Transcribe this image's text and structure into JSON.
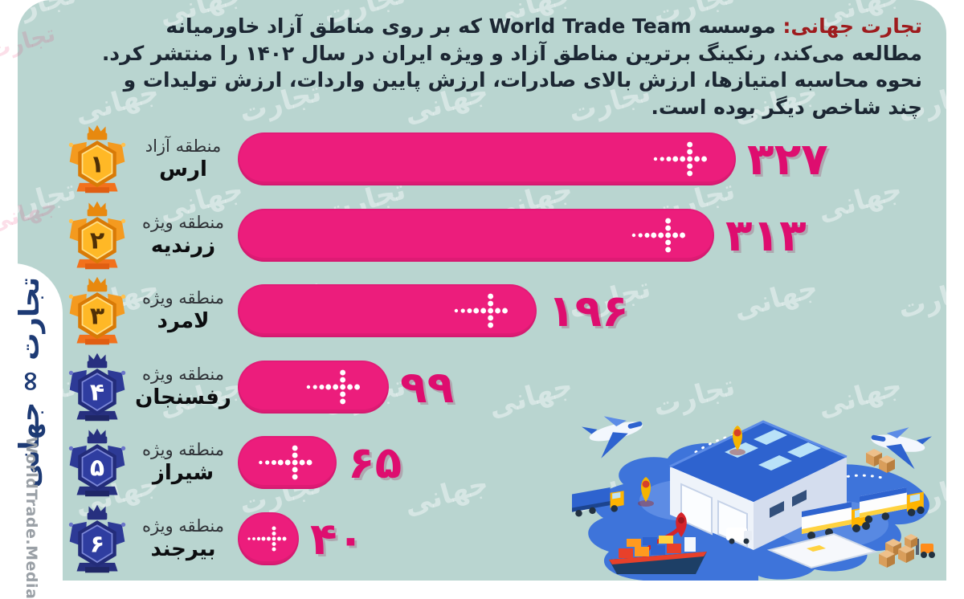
{
  "page": {
    "background": "#ffffff",
    "canvas_background": "#b9d5d0"
  },
  "header": {
    "lead": "تجارت جهانی:",
    "body": " موسسه World Trade Team که بر روی  مناطق آزاد خاورمیانه مطالعه می‌کند، رنکینگ برترین مناطق آزاد و ویژه ایران در سال ۱۴۰۲ را منتشر کرد. نحوه محاسبه امتیازها، ارزش بالای صادرات، ارزش پایین واردات، ارزش تولیدات و چند شاخص دیگر بوده است.",
    "lead_color": "#9e1c1e",
    "text_color": "#1c2733"
  },
  "brand": {
    "logo_fa": "تجارت ∞ جهانی",
    "logo_en": "WorldTrade.Media",
    "logo_color": "#1d3a74"
  },
  "watermark": {
    "words": [
      "تجارت",
      "جهانی"
    ]
  },
  "chart_data": {
    "type": "bar",
    "orientation": "horizontal",
    "title": "رنکینگ برترین مناطق آزاد و ویژه ایران در سال ۱۴۰۲ (World Trade Team)",
    "categories": [
      "منطقه آزاد ارس",
      "منطقه ویژه زرندیه",
      "منطقه ویژه لامرد",
      "منطقه ویژه رفسنجان",
      "منطقه ویژه شیراز",
      "منطقه ویژه بیرجند"
    ],
    "values": [
      327,
      313,
      196,
      99,
      65,
      40
    ],
    "xlim": [
      0,
      340
    ],
    "grid": false,
    "legend": false,
    "bar_color": "#ec1d7c",
    "value_color": "#de0d6f",
    "rows": [
      {
        "rank_fa": "۱",
        "type": "منطقه آزاد",
        "name": "ارس",
        "value": 327,
        "value_fa": "۳۲۷",
        "medal": "gold"
      },
      {
        "rank_fa": "۲",
        "type": "منطقه ویژه",
        "name": "زرندیه",
        "value": 313,
        "value_fa": "۳۱۳",
        "medal": "gold"
      },
      {
        "rank_fa": "۳",
        "type": "منطقه ویژه",
        "name": "لامرد",
        "value": 196,
        "value_fa": "۱۹۶",
        "medal": "gold"
      },
      {
        "rank_fa": "۴",
        "type": "منطقه ویژه",
        "name": "رفسنجان",
        "value": 99,
        "value_fa": "۹۹",
        "medal": "blue"
      },
      {
        "rank_fa": "۵",
        "type": "منطقه ویژه",
        "name": "شیراز",
        "value": 65,
        "value_fa": "۶۵",
        "medal": "blue"
      },
      {
        "rank_fa": "۶",
        "type": "منطقه ویژه",
        "name": "بیرجند",
        "value": 40,
        "value_fa": "۴۰",
        "medal": "blue"
      }
    ]
  }
}
